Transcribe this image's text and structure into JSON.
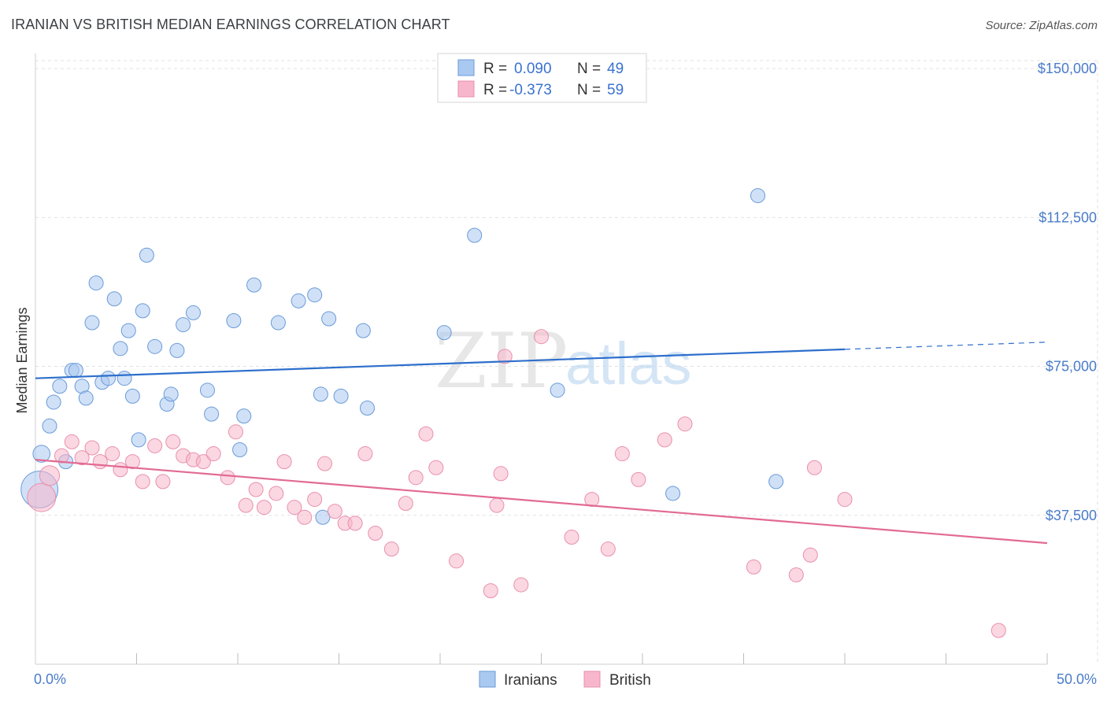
{
  "title": "IRANIAN VS BRITISH MEDIAN EARNINGS CORRELATION CHART",
  "source": "Source: ZipAtlas.com",
  "watermark": {
    "zip": "ZIP",
    "atlas": "atlas"
  },
  "chart_data": {
    "type": "scatter",
    "xlabel": "",
    "ylabel": "Median Earnings",
    "xlim": [
      0,
      50
    ],
    "ylim": [
      0,
      152000
    ],
    "x_tick_labels": {
      "min": "0.0%",
      "max": "50.0%"
    },
    "y_ticks": [
      {
        "value": 37500,
        "label": "$37,500"
      },
      {
        "value": 75000,
        "label": "$75,000"
      },
      {
        "value": 112500,
        "label": "$112,500"
      },
      {
        "value": 150000,
        "label": "$150,000"
      }
    ],
    "legend": [
      {
        "name": "Iranians",
        "r_label": "R =",
        "r": "0.090",
        "n_label": "N =",
        "n": "49",
        "color": "#a9c9f0",
        "stroke": "#6a9ad8"
      },
      {
        "name": "British",
        "r_label": "R =",
        "r": "-0.373",
        "n_label": "N =",
        "n": "59",
        "color": "#f7b6cb",
        "stroke": "#e890ae"
      }
    ],
    "series": [
      {
        "name": "Iranians",
        "color": "#a9c9f0",
        "line_color": "#2d6fcc",
        "trend": {
          "x0": 0,
          "y0": 72000,
          "x1": 40,
          "y1": 79300,
          "dash_to_x": 50,
          "dash_to_y": 81100
        },
        "points": [
          [
            0.2,
            44000,
            26
          ],
          [
            0.3,
            53000,
            12
          ],
          [
            0.7,
            60000,
            10
          ],
          [
            0.9,
            66000,
            10
          ],
          [
            1.2,
            70000,
            10
          ],
          [
            1.5,
            51000,
            10
          ],
          [
            1.8,
            74000,
            10
          ],
          [
            2.0,
            74000,
            10
          ],
          [
            2.3,
            70000,
            10
          ],
          [
            2.5,
            67000,
            10
          ],
          [
            2.8,
            86000,
            10
          ],
          [
            3.0,
            96000,
            10
          ],
          [
            3.3,
            71000,
            10
          ],
          [
            3.6,
            72000,
            10
          ],
          [
            3.9,
            92000,
            10
          ],
          [
            4.2,
            79500,
            10
          ],
          [
            4.4,
            72000,
            10
          ],
          [
            4.6,
            84000,
            10
          ],
          [
            4.8,
            67500,
            10
          ],
          [
            5.1,
            56500,
            10
          ],
          [
            5.3,
            89000,
            10
          ],
          [
            5.5,
            103000,
            10
          ],
          [
            5.9,
            80000,
            10
          ],
          [
            6.5,
            65500,
            10
          ],
          [
            6.7,
            68000,
            10
          ],
          [
            7.0,
            79000,
            10
          ],
          [
            7.3,
            85500,
            10
          ],
          [
            7.8,
            88500,
            10
          ],
          [
            8.5,
            69000,
            10
          ],
          [
            8.7,
            63000,
            10
          ],
          [
            9.8,
            86500,
            10
          ],
          [
            10.1,
            54000,
            10
          ],
          [
            10.3,
            62500,
            10
          ],
          [
            10.8,
            95500,
            10
          ],
          [
            12.0,
            86000,
            10
          ],
          [
            13.0,
            91500,
            10
          ],
          [
            13.8,
            93000,
            10
          ],
          [
            14.1,
            68000,
            10
          ],
          [
            14.2,
            37000,
            10
          ],
          [
            14.5,
            87000,
            10
          ],
          [
            15.1,
            67500,
            10
          ],
          [
            16.2,
            84000,
            10
          ],
          [
            16.4,
            64500,
            10
          ],
          [
            20.2,
            83500,
            10
          ],
          [
            21.7,
            108000,
            10
          ],
          [
            25.8,
            69000,
            10
          ],
          [
            31.5,
            43000,
            10
          ],
          [
            35.7,
            118000,
            10
          ],
          [
            36.6,
            46000,
            10
          ]
        ]
      },
      {
        "name": "British",
        "color": "#f7b6cb",
        "line_color": "#e26a94",
        "trend": {
          "x0": 0,
          "y0": 51500,
          "x1": 50,
          "y1": 30500
        },
        "points": [
          [
            0.3,
            42000,
            20
          ],
          [
            0.7,
            47500,
            14
          ],
          [
            1.3,
            52500,
            10
          ],
          [
            1.8,
            56000,
            10
          ],
          [
            2.3,
            52000,
            10
          ],
          [
            2.8,
            54500,
            10
          ],
          [
            3.2,
            51000,
            10
          ],
          [
            3.8,
            53000,
            10
          ],
          [
            4.2,
            49000,
            10
          ],
          [
            4.8,
            51000,
            10
          ],
          [
            5.3,
            46000,
            10
          ],
          [
            5.9,
            55000,
            10
          ],
          [
            6.3,
            46000,
            10
          ],
          [
            6.8,
            56000,
            10
          ],
          [
            7.3,
            52500,
            10
          ],
          [
            7.8,
            51500,
            10
          ],
          [
            8.3,
            51000,
            10
          ],
          [
            8.8,
            53000,
            10
          ],
          [
            9.5,
            47000,
            10
          ],
          [
            9.9,
            58500,
            10
          ],
          [
            10.4,
            40000,
            10
          ],
          [
            10.9,
            44000,
            10
          ],
          [
            11.3,
            39500,
            10
          ],
          [
            11.9,
            43000,
            10
          ],
          [
            12.3,
            51000,
            10
          ],
          [
            12.8,
            39500,
            10
          ],
          [
            13.3,
            37000,
            10
          ],
          [
            13.8,
            41500,
            10
          ],
          [
            14.3,
            50500,
            10
          ],
          [
            14.8,
            38500,
            10
          ],
          [
            15.3,
            35500,
            10
          ],
          [
            15.8,
            35500,
            10
          ],
          [
            16.3,
            53000,
            10
          ],
          [
            16.8,
            33000,
            10
          ],
          [
            17.6,
            29000,
            10
          ],
          [
            18.3,
            40500,
            10
          ],
          [
            18.8,
            47000,
            10
          ],
          [
            19.3,
            58000,
            10
          ],
          [
            19.8,
            49500,
            10
          ],
          [
            20.8,
            26000,
            10
          ],
          [
            22.5,
            18500,
            10
          ],
          [
            22.8,
            40000,
            10
          ],
          [
            23.0,
            48000,
            10
          ],
          [
            23.2,
            77500,
            10
          ],
          [
            24.0,
            20000,
            10
          ],
          [
            25.0,
            82500,
            10
          ],
          [
            26.5,
            32000,
            10
          ],
          [
            27.5,
            41500,
            10
          ],
          [
            28.3,
            29000,
            10
          ],
          [
            29.0,
            53000,
            10
          ],
          [
            29.8,
            46500,
            10
          ],
          [
            31.1,
            56500,
            10
          ],
          [
            32.1,
            60500,
            10
          ],
          [
            35.5,
            24500,
            10
          ],
          [
            37.6,
            22500,
            10
          ],
          [
            38.3,
            27500,
            10
          ],
          [
            38.5,
            49500,
            10
          ],
          [
            40.0,
            41500,
            10
          ],
          [
            47.6,
            8500,
            10
          ]
        ]
      }
    ]
  }
}
